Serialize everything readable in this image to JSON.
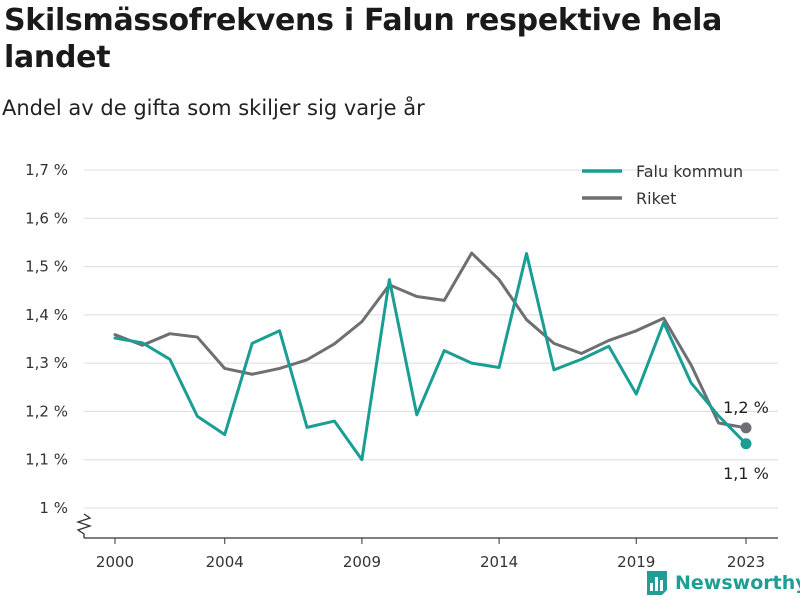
{
  "title": "Skilsmässofrekvens i Falun respektive hela landet",
  "subtitle": "Andel av de gifta som skiljer sig varje år",
  "brand": {
    "name": "Newsworthy",
    "color": "#1e9e94",
    "icon": "bar-chart-logo-icon"
  },
  "chart_data": {
    "type": "line",
    "title": "Skilsmässofrekvens i Falun respektive hela landet",
    "subtitle": "Andel av de gifta som skiljer sig varje år",
    "xlabel": "",
    "ylabel": "",
    "x": [
      2000,
      2001,
      2002,
      2003,
      2004,
      2005,
      2006,
      2007,
      2008,
      2009,
      2010,
      2011,
      2012,
      2013,
      2014,
      2015,
      2016,
      2017,
      2018,
      2019,
      2020,
      2021,
      2022,
      2023
    ],
    "x_ticks": [
      2000,
      2004,
      2009,
      2014,
      2019,
      2023
    ],
    "x_tick_labels": [
      "2000",
      "2004",
      "2009",
      "2014",
      "2019",
      "2023"
    ],
    "ylim": [
      1.0,
      1.7
    ],
    "y_ticks": [
      1.0,
      1.1,
      1.2,
      1.3,
      1.4,
      1.5,
      1.6,
      1.7
    ],
    "y_tick_labels": [
      "1 %",
      "1,1 %",
      "1,2 %",
      "1,3 %",
      "1,4 %",
      "1,5 %",
      "1,6 %",
      "1,7 %"
    ],
    "axis_break": true,
    "grid": "horizontal",
    "legend_position": "top-right",
    "series": [
      {
        "name": "Falu kommun",
        "color": "#1a9e94",
        "values": [
          1.352,
          1.342,
          1.308,
          1.19,
          1.152,
          1.341,
          1.367,
          1.167,
          1.18,
          1.1,
          1.473,
          1.193,
          1.326,
          1.3,
          1.291,
          1.527,
          1.286,
          1.308,
          1.335,
          1.236,
          1.384,
          1.259,
          1.191,
          1.133
        ],
        "end_label": "1,1 %"
      },
      {
        "name": "Riket",
        "color": "#6e6e73",
        "values": [
          1.359,
          1.337,
          1.361,
          1.354,
          1.289,
          1.277,
          1.289,
          1.307,
          1.34,
          1.386,
          1.462,
          1.438,
          1.43,
          1.528,
          1.473,
          1.39,
          1.341,
          1.32,
          1.347,
          1.367,
          1.393,
          1.296,
          1.176,
          1.166
        ],
        "end_label": "1,2 %"
      }
    ]
  }
}
